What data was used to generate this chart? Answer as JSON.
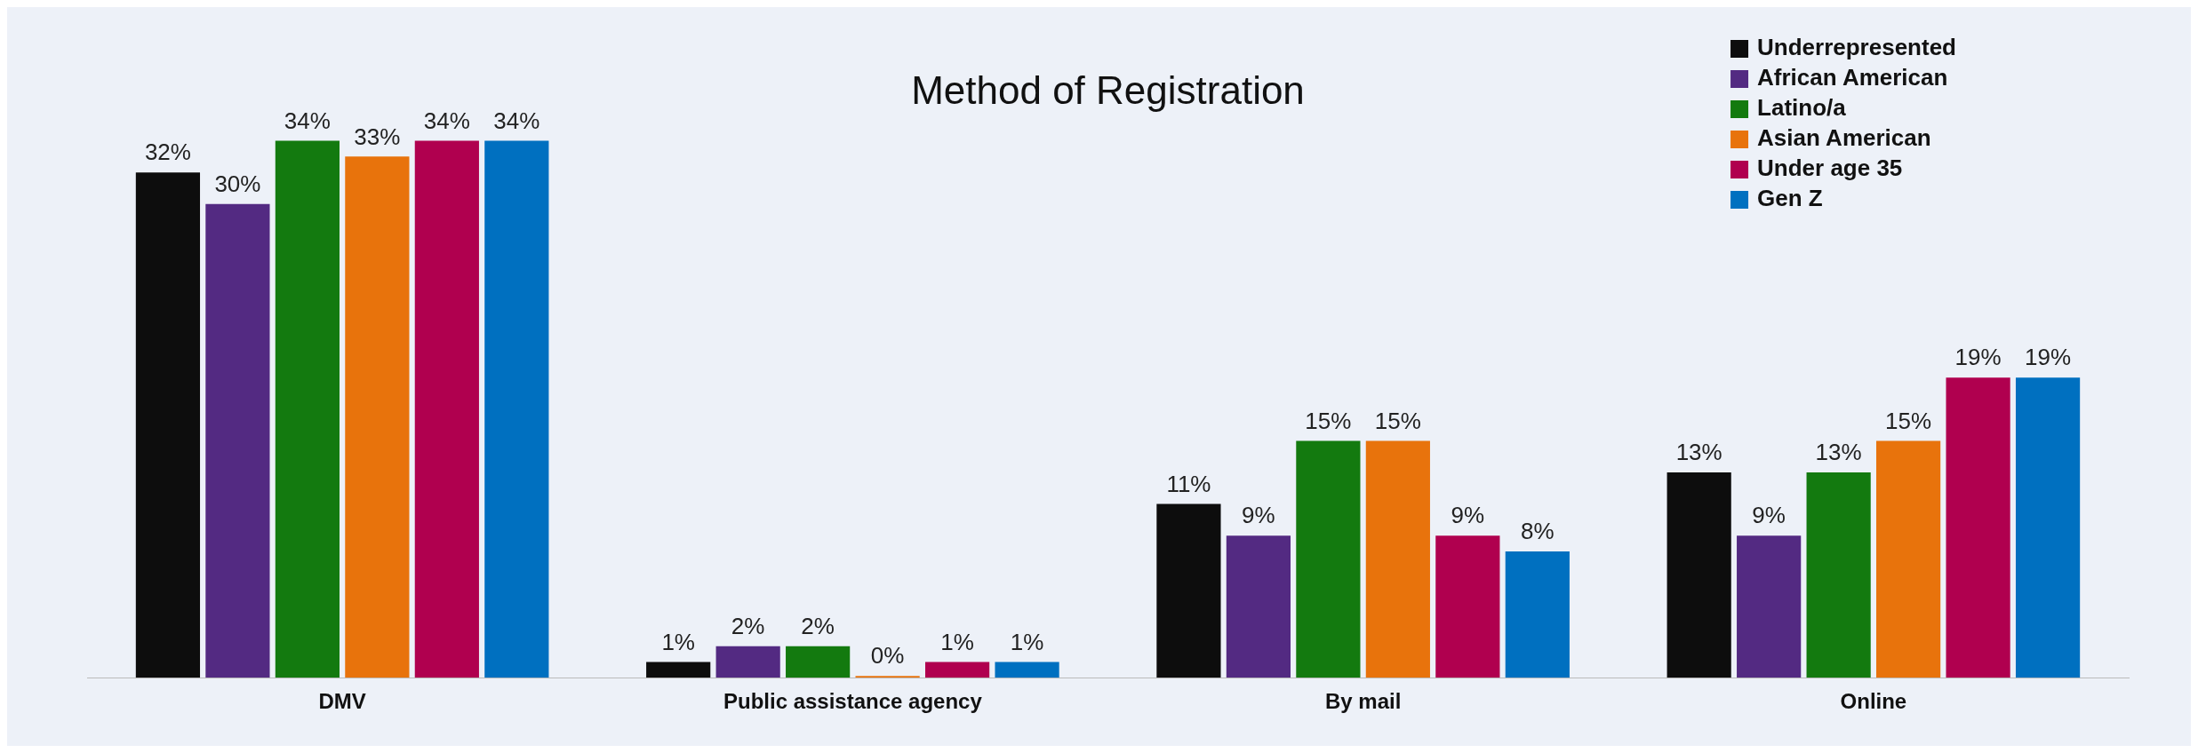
{
  "chart_data": {
    "type": "bar",
    "title": "Method of Registration",
    "categories": [
      "DMV",
      "Public assistance agency",
      "By mail",
      "Online"
    ],
    "series": [
      {
        "name": "Underrepresented",
        "color": "#0d0d0d",
        "values": [
          32,
          1,
          11,
          13
        ],
        "value_labels": [
          "32%",
          "1%",
          "11%",
          "13%"
        ]
      },
      {
        "name": "African American",
        "color": "#532a82",
        "values": [
          30,
          2,
          9,
          9
        ],
        "value_labels": [
          "30%",
          "2%",
          "9%",
          "9%"
        ]
      },
      {
        "name": "Latino/a",
        "color": "#137a0f",
        "values": [
          34,
          2,
          15,
          13
        ],
        "value_labels": [
          "34%",
          "2%",
          "15%",
          "13%"
        ]
      },
      {
        "name": "Asian American",
        "color": "#e8730c",
        "values": [
          33,
          0,
          15,
          15
        ],
        "value_labels": [
          "33%",
          "0%",
          "15%",
          "15%"
        ]
      },
      {
        "name": "Under age 35",
        "color": "#b0004f",
        "values": [
          34,
          1,
          9,
          19
        ],
        "value_labels": [
          "34%",
          "1%",
          "9%",
          "19%"
        ]
      },
      {
        "name": "Gen Z",
        "color": "#0070c0",
        "values": [
          34,
          1,
          8,
          19
        ],
        "value_labels": [
          "34%",
          "1%",
          "8%",
          "19%"
        ]
      }
    ],
    "tick_labels": "x",
    "grid": false,
    "legend": "top right"
  }
}
